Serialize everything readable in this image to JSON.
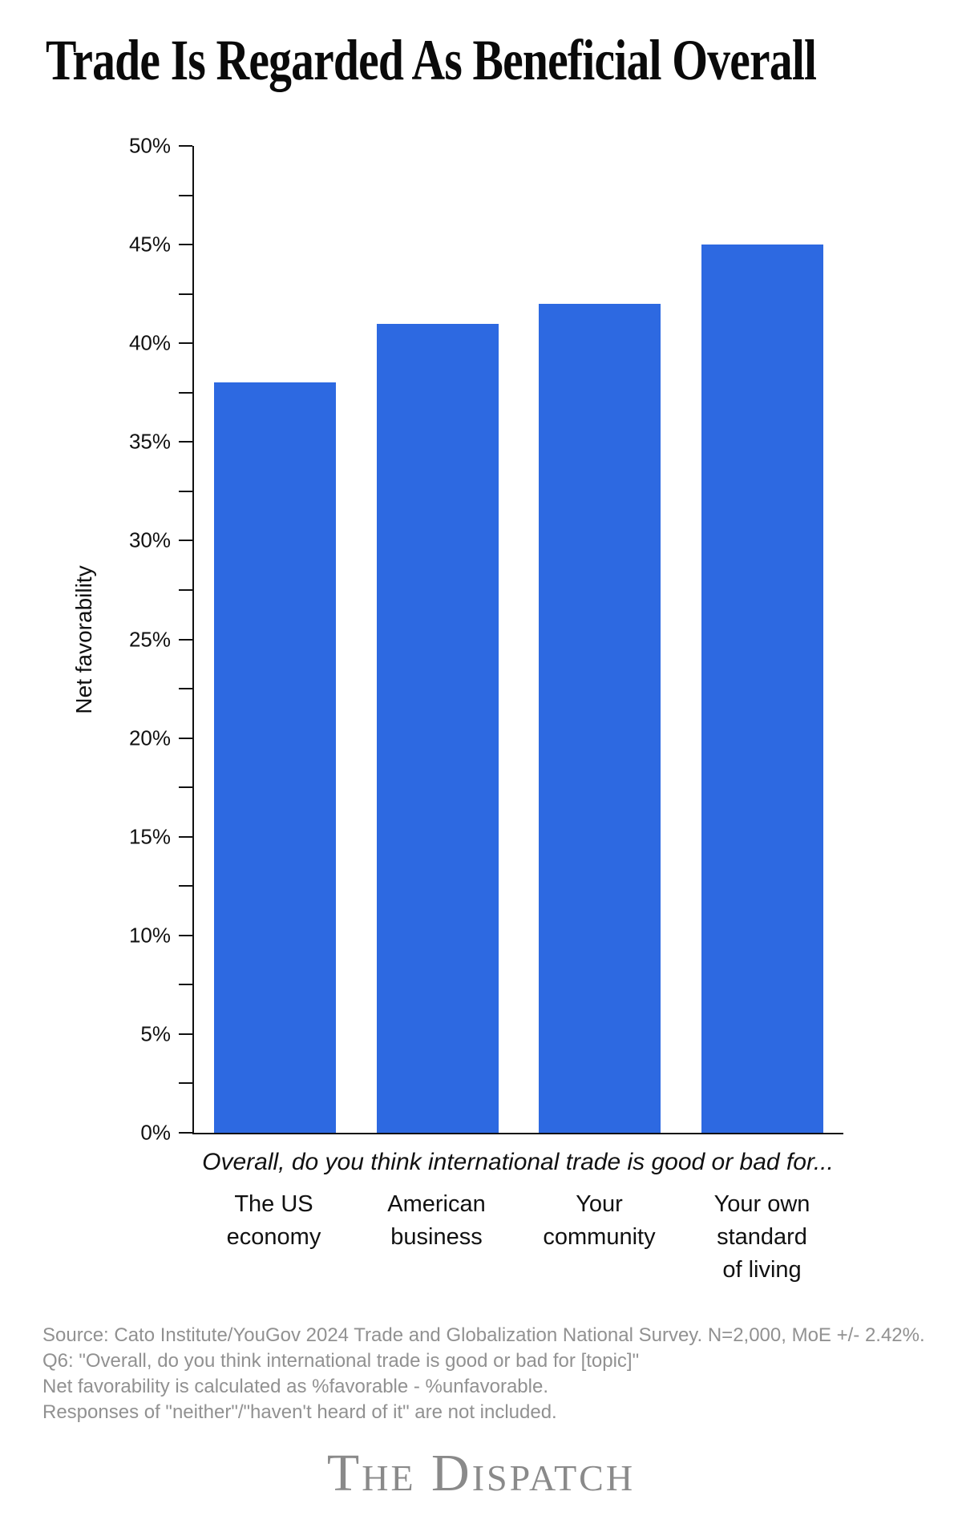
{
  "chart_data": {
    "type": "bar",
    "title": "Trade Is Regarded As Beneficial Overall",
    "categories": [
      "The US\neconomy",
      "American\nbusiness",
      "Your\ncommunity",
      "Your own\nstandard\nof living"
    ],
    "values": [
      38,
      41,
      42,
      45
    ],
    "xlabel": "Overall, do you think international trade is good or bad for...",
    "ylabel": "Net favorability",
    "ylim": [
      0,
      50
    ],
    "y_major_tick_step": 5,
    "y_minor_tick_step": 2.5,
    "y_tick_suffix": "%",
    "grid": false,
    "legend": false,
    "bar_color": "#2d69e1"
  },
  "colors": {
    "bar": "#2d69e1",
    "axis": "#111111",
    "title_text": "#0a0a0a",
    "muted_text": "#919191",
    "logo_text": "#8a8a8a"
  },
  "footer": {
    "source_lines": [
      "Source: Cato Institute/YouGov 2024 Trade and Globalization National Survey. N=2,000, MoE +/- 2.42%.",
      "Q6: \"Overall, do you think international trade is good or bad for [topic]\"",
      "Net favorability is calculated as %favorable - %unfavorable.",
      "Responses of \"neither\"/\"haven't heard of it\" are not included."
    ],
    "logo_text": "The Dispatch"
  }
}
